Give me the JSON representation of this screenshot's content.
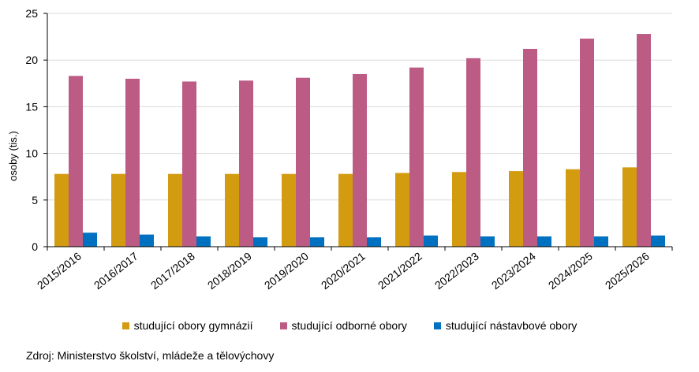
{
  "chart_data": {
    "type": "bar",
    "title": "",
    "xlabel": "",
    "ylabel": "osoby (tis.)",
    "ylim": [
      0,
      25
    ],
    "yticks": [
      0,
      5,
      10,
      15,
      20,
      25
    ],
    "grid": true,
    "legend_position": "bottom",
    "categories": [
      "2015/2016",
      "2016/2017",
      "2017/2018",
      "2018/2019",
      "2019/2020",
      "2020/2021",
      "2021/2022",
      "2022/2023",
      "2023/2024",
      "2024/2025",
      "2025/2026"
    ],
    "series": [
      {
        "name": "studující obory gymnázií",
        "color": "#d39b10",
        "values": [
          7.8,
          7.8,
          7.8,
          7.8,
          7.8,
          7.8,
          7.9,
          8.0,
          8.1,
          8.3,
          8.5
        ]
      },
      {
        "name": "studující odborné obory",
        "color": "#bc5c84",
        "values": [
          18.3,
          18.0,
          17.7,
          17.8,
          18.1,
          18.5,
          19.2,
          20.2,
          21.2,
          22.3,
          22.8
        ]
      },
      {
        "name": "studující nástavbové obory",
        "color": "#0070c0",
        "values": [
          1.5,
          1.3,
          1.1,
          1.0,
          1.0,
          1.0,
          1.2,
          1.1,
          1.1,
          1.1,
          1.2
        ]
      }
    ]
  },
  "source_text": "Zdroj: Ministerstvo školství, mládeže a tělovýchovy"
}
